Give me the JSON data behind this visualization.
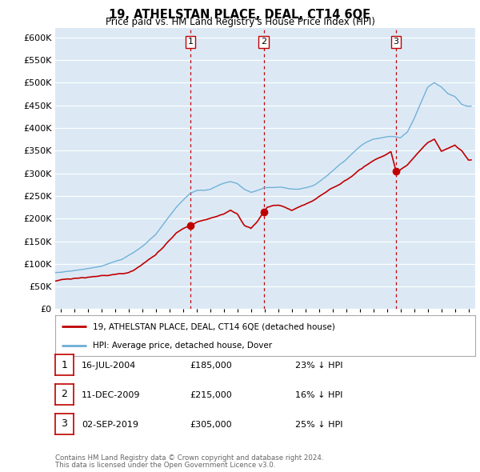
{
  "title": "19, ATHELSTAN PLACE, DEAL, CT14 6QE",
  "subtitle": "Price paid vs. HM Land Registry's House Price Index (HPI)",
  "ylabel_ticks": [
    "£0",
    "£50K",
    "£100K",
    "£150K",
    "£200K",
    "£250K",
    "£300K",
    "£350K",
    "£400K",
    "£450K",
    "£500K",
    "£550K",
    "£600K"
  ],
  "ytick_values": [
    0,
    50000,
    100000,
    150000,
    200000,
    250000,
    300000,
    350000,
    400000,
    450000,
    500000,
    550000,
    600000
  ],
  "xlim_start": 1994.6,
  "xlim_end": 2025.5,
  "ylim_min": 0,
  "ylim_max": 620000,
  "bg_color": "#dce9f5",
  "grid_color": "#ffffff",
  "hpi_color": "#6baed6",
  "price_color": "#c00000",
  "vline_color": "#c00000",
  "transactions": [
    {
      "num": 1,
      "date": "16-JUL-2004",
      "price": 185000,
      "pct": "23%",
      "x": 2004.54
    },
    {
      "num": 2,
      "date": "11-DEC-2009",
      "price": 215000,
      "pct": "16%",
      "x": 2009.94
    },
    {
      "num": 3,
      "date": "02-SEP-2019",
      "price": 305000,
      "pct": "25%",
      "x": 2019.67
    }
  ],
  "footer1": "Contains HM Land Registry data © Crown copyright and database right 2024.",
  "footer2": "This data is licensed under the Open Government Licence v3.0.",
  "legend_line1": "19, ATHELSTAN PLACE, DEAL, CT14 6QE (detached house)",
  "legend_line2": "HPI: Average price, detached house, Dover",
  "xtick_years": [
    1995,
    1996,
    1997,
    1998,
    1999,
    2000,
    2001,
    2002,
    2003,
    2004,
    2005,
    2006,
    2007,
    2008,
    2009,
    2010,
    2011,
    2012,
    2013,
    2014,
    2015,
    2016,
    2017,
    2018,
    2019,
    2020,
    2021,
    2022,
    2023,
    2024,
    2025
  ],
  "hpi_anchors_x": [
    1994.6,
    1995.0,
    1995.5,
    1996.0,
    1996.5,
    1997.0,
    1997.5,
    1998.0,
    1998.5,
    1999.0,
    1999.5,
    2000.0,
    2000.5,
    2001.0,
    2001.5,
    2002.0,
    2002.5,
    2003.0,
    2003.5,
    2004.0,
    2004.5,
    2005.0,
    2005.5,
    2006.0,
    2006.5,
    2007.0,
    2007.5,
    2008.0,
    2008.5,
    2009.0,
    2009.5,
    2010.0,
    2010.5,
    2011.0,
    2011.5,
    2012.0,
    2012.5,
    2013.0,
    2013.5,
    2014.0,
    2014.5,
    2015.0,
    2015.5,
    2016.0,
    2016.5,
    2017.0,
    2017.5,
    2018.0,
    2018.5,
    2019.0,
    2019.5,
    2020.0,
    2020.5,
    2021.0,
    2021.5,
    2022.0,
    2022.5,
    2023.0,
    2023.5,
    2024.0,
    2024.5,
    2025.0
  ],
  "hpi_anchors_y": [
    80000,
    82000,
    84000,
    85000,
    87000,
    90000,
    92000,
    95000,
    100000,
    105000,
    110000,
    118000,
    128000,
    138000,
    152000,
    165000,
    185000,
    205000,
    225000,
    240000,
    255000,
    262000,
    262000,
    265000,
    272000,
    278000,
    282000,
    278000,
    265000,
    258000,
    262000,
    268000,
    268000,
    270000,
    268000,
    265000,
    265000,
    268000,
    272000,
    280000,
    292000,
    305000,
    318000,
    330000,
    345000,
    358000,
    368000,
    375000,
    378000,
    380000,
    382000,
    378000,
    390000,
    420000,
    455000,
    490000,
    500000,
    490000,
    475000,
    470000,
    452000,
    448000
  ],
  "price_anchors_x": [
    1994.6,
    1995.0,
    1995.5,
    1996.0,
    1996.5,
    1997.0,
    1997.5,
    1998.0,
    1998.5,
    1999.0,
    1999.5,
    2000.0,
    2000.5,
    2001.0,
    2001.5,
    2002.0,
    2002.5,
    2003.0,
    2003.5,
    2004.0,
    2004.54,
    2004.8,
    2005.0,
    2005.5,
    2006.0,
    2006.5,
    2007.0,
    2007.5,
    2008.0,
    2008.5,
    2009.0,
    2009.5,
    2009.94,
    2010.2,
    2010.5,
    2011.0,
    2011.5,
    2012.0,
    2012.5,
    2013.0,
    2013.5,
    2014.0,
    2014.5,
    2015.0,
    2015.5,
    2016.0,
    2016.5,
    2017.0,
    2017.5,
    2018.0,
    2018.5,
    2019.0,
    2019.3,
    2019.67,
    2019.9,
    2020.0,
    2020.5,
    2021.0,
    2021.5,
    2022.0,
    2022.5,
    2023.0,
    2023.5,
    2024.0,
    2024.5,
    2025.0
  ],
  "price_anchors_y": [
    62000,
    65000,
    66000,
    68000,
    69000,
    70000,
    72000,
    74000,
    75000,
    77000,
    78000,
    80000,
    88000,
    98000,
    110000,
    120000,
    135000,
    152000,
    168000,
    178000,
    185000,
    188000,
    192000,
    196000,
    200000,
    205000,
    210000,
    218000,
    210000,
    185000,
    178000,
    195000,
    215000,
    225000,
    228000,
    230000,
    225000,
    218000,
    225000,
    232000,
    238000,
    248000,
    258000,
    268000,
    275000,
    285000,
    295000,
    308000,
    318000,
    328000,
    335000,
    342000,
    348000,
    305000,
    305000,
    308000,
    318000,
    335000,
    352000,
    368000,
    375000,
    348000,
    355000,
    362000,
    350000,
    330000
  ]
}
